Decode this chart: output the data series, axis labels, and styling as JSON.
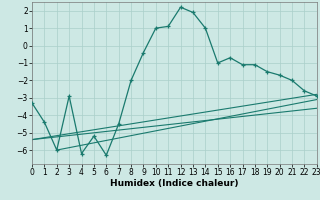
{
  "xlabel": "Humidex (Indice chaleur)",
  "xlim": [
    0,
    23
  ],
  "ylim": [
    -6.8,
    2.5
  ],
  "xticks": [
    0,
    1,
    2,
    3,
    4,
    5,
    6,
    7,
    8,
    9,
    10,
    11,
    12,
    13,
    14,
    15,
    16,
    17,
    18,
    19,
    20,
    21,
    22,
    23
  ],
  "yticks": [
    -6,
    -5,
    -4,
    -3,
    -2,
    -1,
    0,
    1,
    2
  ],
  "line_color": "#1a7a6e",
  "bg_color": "#cde8e4",
  "grid_color": "#aacfca",
  "curve1_x": [
    0,
    1,
    2,
    3,
    4,
    5,
    6,
    7,
    8,
    9,
    10,
    11,
    12,
    13,
    14,
    15,
    16,
    17,
    18,
    19,
    20,
    21,
    22,
    23
  ],
  "curve1_y": [
    -3.3,
    -4.4,
    -6.0,
    -2.9,
    -6.2,
    -5.2,
    -6.3,
    -4.5,
    -2.0,
    -0.4,
    1.0,
    1.1,
    2.2,
    1.9,
    1.0,
    -1.0,
    -0.7,
    -1.1,
    -1.1,
    -1.5,
    -1.7,
    -2.0,
    -2.6,
    -2.9
  ],
  "curve2_x": [
    0,
    23
  ],
  "curve2_y": [
    -5.4,
    -2.8
  ],
  "curve3_x": [
    0,
    23
  ],
  "curve3_y": [
    -5.4,
    -3.6
  ],
  "curve4_x": [
    2,
    23
  ],
  "curve4_y": [
    -6.0,
    -3.1
  ],
  "tick_fontsize": 5.5,
  "xlabel_fontsize": 6.5
}
